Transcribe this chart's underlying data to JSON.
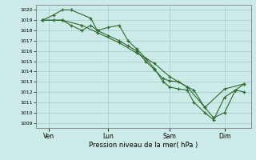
{
  "background_color": "#cceae7",
  "grid_color": "#aacfcc",
  "line_color": "#2d6a2d",
  "marker_color": "#2d6a2d",
  "xlabel_text": "Pression niveau de la mer( hPa )",
  "ylim": [
    1008.5,
    1020.5
  ],
  "yticks": [
    1009,
    1010,
    1011,
    1012,
    1013,
    1014,
    1015,
    1016,
    1017,
    1018,
    1019,
    1020
  ],
  "xtick_labels": [
    "Ven",
    "Lun",
    "Sam",
    "Dim"
  ],
  "xtick_positions": [
    0.08,
    0.35,
    0.63,
    0.88
  ],
  "series": [
    {
      "x": [
        0.05,
        0.1,
        0.14,
        0.18,
        0.23,
        0.27,
        0.3,
        0.35,
        0.4,
        0.44,
        0.48,
        0.52,
        0.56,
        0.6,
        0.63,
        0.67,
        0.71,
        0.74,
        0.79,
        0.83,
        0.88,
        0.93,
        0.97
      ],
      "y": [
        1019,
        1019,
        1019,
        1018.5,
        1018,
        1018.5,
        1018,
        1017.5,
        1017,
        1016.5,
        1016,
        1015,
        1014.2,
        1013.3,
        1013.1,
        1013,
        1012.5,
        1012.2,
        1010.5,
        1009.5,
        1010,
        1012.2,
        1012
      ]
    },
    {
      "x": [
        0.05,
        0.1,
        0.14,
        0.18,
        0.27,
        0.3,
        0.35,
        0.4,
        0.44,
        0.48,
        0.52,
        0.56,
        0.6,
        0.63,
        0.67,
        0.71,
        0.74,
        0.79,
        0.83,
        0.88,
        0.93,
        0.97
      ],
      "y": [
        1019,
        1019.5,
        1020,
        1020,
        1019.2,
        1018,
        1018.3,
        1018.5,
        1017,
        1016.2,
        1015.3,
        1014.3,
        1013,
        1012.5,
        1012.3,
        1012.2,
        1011,
        1010,
        1009.3,
        1011.5,
        1012.2,
        1012.8
      ]
    },
    {
      "x": [
        0.05,
        0.14,
        0.23,
        0.3,
        0.4,
        0.48,
        0.56,
        0.63,
        0.71,
        0.79,
        0.88,
        0.97
      ],
      "y": [
        1019,
        1019,
        1018.5,
        1017.8,
        1016.8,
        1015.8,
        1014.8,
        1013.5,
        1012.5,
        1010.5,
        1012.3,
        1012.8
      ]
    }
  ]
}
